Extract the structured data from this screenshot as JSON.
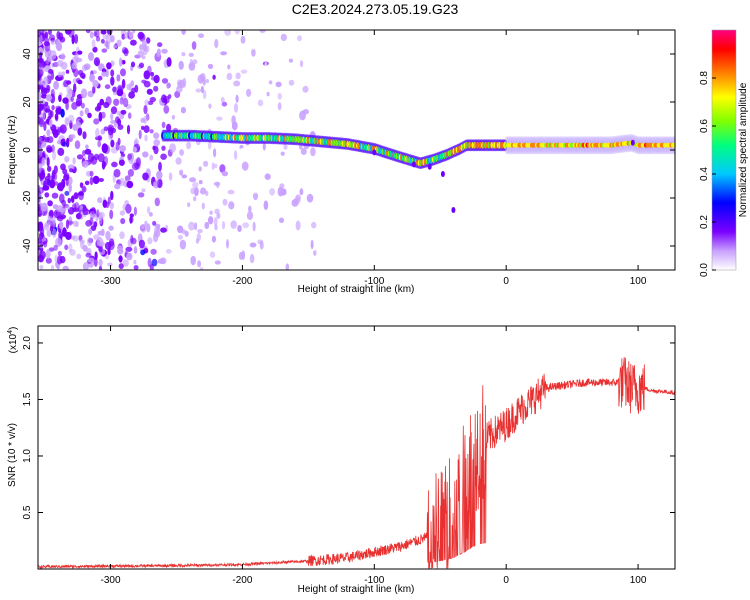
{
  "title": "C2E3.2024.273.05.19.G23",
  "chart_data": [
    {
      "type": "heatmap",
      "xlabel": "Height of straight line (km)",
      "ylabel": "Frequency (Hz)",
      "xlim": [
        -355,
        128
      ],
      "ylim": [
        -50,
        50
      ],
      "xticks": [
        -300,
        -200,
        -100,
        0,
        100
      ],
      "yticks": [
        -40,
        -20,
        0,
        20,
        40
      ],
      "xtick_labels": [
        "-300",
        "-200",
        "-100",
        "0",
        "100"
      ],
      "ytick_labels": [
        "-40",
        "-20",
        "0",
        "20",
        "40"
      ],
      "colorbar": {
        "label": "Normalized spectral amplitude",
        "range": [
          0,
          1
        ],
        "ticks": [
          0.0,
          0.2,
          0.4,
          0.6,
          0.8
        ],
        "tick_labels": [
          "0.0",
          "0.2",
          "0.4",
          "0.6",
          "0.8"
        ],
        "colors": [
          "#ffffff",
          "#c8a0ff",
          "#7a00ff",
          "#0000ff",
          "#00c8ff",
          "#00ff80",
          "#80ff00",
          "#ffff00",
          "#ff8000",
          "#ff0000",
          "#ff0080"
        ]
      },
      "ridge": {
        "x": [
          -260,
          -240,
          -220,
          -200,
          -180,
          -160,
          -140,
          -120,
          -100,
          -80,
          -65,
          -55,
          -45,
          -35,
          -30,
          -20,
          0,
          20,
          40,
          60,
          80,
          95,
          100,
          110,
          128
        ],
        "y": [
          6,
          6,
          5.5,
          5,
          5,
          4.5,
          3.5,
          2.5,
          0.5,
          -3,
          -5.5,
          -4,
          -2,
          0.5,
          2,
          2,
          2,
          2,
          2,
          2,
          2,
          3,
          2,
          2,
          2
        ]
      },
      "noise_region": {
        "x": [
          -355,
          -150
        ],
        "y": [
          -50,
          50
        ]
      }
    },
    {
      "type": "line",
      "xlabel": "Height of straight line (km)",
      "ylabel": "SNR (10 * v/v)",
      "multiplier_label": "(x10",
      "multiplier_exponent": "4",
      "xlim": [
        -355,
        128
      ],
      "ylim": [
        0,
        2.15
      ],
      "xticks": [
        -300,
        -200,
        -100,
        0,
        100
      ],
      "yticks": [
        0.5,
        1.0,
        1.5,
        2.0
      ],
      "xtick_labels": [
        "-300",
        "-200",
        "-100",
        "0",
        "100"
      ],
      "ytick_labels": [
        "0.5",
        "1.0",
        "1.5",
        "2.0"
      ],
      "series_color": "#e83030",
      "envelope": {
        "x": [
          -355,
          -250,
          -200,
          -150,
          -120,
          -100,
          -80,
          -60,
          -50,
          -40,
          -30,
          -25,
          -20,
          -10,
          0,
          10,
          20,
          30,
          40,
          60,
          80,
          90,
          95,
          100,
          105,
          110,
          128
        ],
        "y": [
          0.02,
          0.03,
          0.04,
          0.07,
          0.1,
          0.15,
          0.2,
          0.28,
          0.35,
          0.5,
          0.8,
          1.0,
          1.1,
          1.2,
          1.28,
          1.4,
          1.5,
          1.6,
          1.62,
          1.65,
          1.65,
          1.65,
          1.6,
          1.6,
          1.6,
          1.58,
          1.56
        ]
      }
    }
  ]
}
